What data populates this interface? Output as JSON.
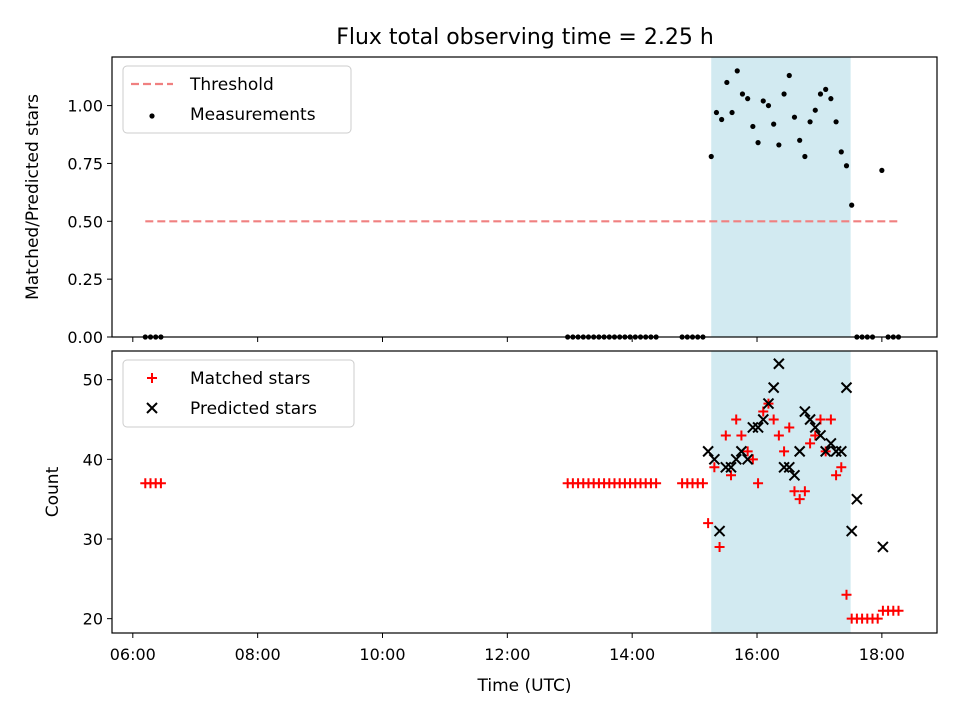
{
  "title": "Flux total observing time = 2.25 h",
  "colors": {
    "threshold": "#f08080",
    "shade": "#add8e6",
    "matched": "#ff0000",
    "predicted": "#000000",
    "measure": "#000000"
  },
  "chart_data": [
    {
      "type": "scatter",
      "title": "Flux total observing time = 2.25 h",
      "xlabel": "",
      "ylabel": "Matched/Predicted stars",
      "x_unit": "hours UTC",
      "xlim": [
        "05:40",
        "18:53"
      ],
      "ylim": [
        0,
        1.21
      ],
      "yticks": [
        "0.00",
        "0.25",
        "0.50",
        "0.75",
        "1.00"
      ],
      "shaded_interval": [
        "15:16",
        "17:30"
      ],
      "legend": [
        "Threshold",
        "Measurements"
      ],
      "legend_position": "upper left",
      "series": [
        {
          "name": "Threshold",
          "style": "dashed line",
          "x": [
            "06:12",
            "18:17"
          ],
          "y": [
            0.5,
            0.5
          ]
        },
        {
          "name": "Measurements",
          "style": "points",
          "x": [
            "06:12",
            "06:17",
            "06:22",
            "06:27",
            "12:58",
            "13:03",
            "13:08",
            "13:13",
            "13:18",
            "13:23",
            "13:28",
            "13:33",
            "13:38",
            "13:43",
            "13:48",
            "13:53",
            "13:58",
            "14:03",
            "14:08",
            "14:13",
            "14:18",
            "14:23",
            "14:48",
            "14:53",
            "14:58",
            "15:03",
            "15:08",
            "15:16",
            "15:21",
            "15:26",
            "15:31",
            "15:36",
            "15:41",
            "15:46",
            "15:51",
            "15:56",
            "16:01",
            "16:06",
            "16:11",
            "16:16",
            "16:21",
            "16:26",
            "16:31",
            "16:36",
            "16:41",
            "16:46",
            "16:51",
            "16:56",
            "17:01",
            "17:06",
            "17:11",
            "17:16",
            "17:21",
            "17:26",
            "17:31",
            "17:36",
            "17:41",
            "17:46",
            "17:51",
            "18:00",
            "18:06",
            "18:11",
            "18:16"
          ],
          "y": [
            0,
            0,
            0,
            0,
            0,
            0,
            0,
            0,
            0,
            0,
            0,
            0,
            0,
            0,
            0,
            0,
            0,
            0,
            0,
            0,
            0,
            0,
            0,
            0,
            0,
            0,
            0,
            0.78,
            0.97,
            0.94,
            1.1,
            0.97,
            1.15,
            1.05,
            1.03,
            0.91,
            0.84,
            1.02,
            1.0,
            0.92,
            0.83,
            1.05,
            1.13,
            0.95,
            0.85,
            0.78,
            0.93,
            0.98,
            1.05,
            1.07,
            1.03,
            0.93,
            0.8,
            0.74,
            0.57,
            0,
            0,
            0,
            0,
            0.72,
            0,
            0,
            0
          ]
        }
      ]
    },
    {
      "type": "scatter",
      "xlabel": "Time (UTC)",
      "ylabel": "Count",
      "x_unit": "hours UTC",
      "xlim": [
        "05:40",
        "18:53"
      ],
      "ylim": [
        18.2,
        53.6
      ],
      "xticks": [
        "06:00",
        "08:00",
        "10:00",
        "12:00",
        "14:00",
        "16:00",
        "18:00"
      ],
      "yticks": [
        "20",
        "30",
        "40",
        "50"
      ],
      "shaded_interval": [
        "15:16",
        "17:30"
      ],
      "legend": [
        "Matched stars",
        "Predicted stars"
      ],
      "legend_position": "upper left",
      "series": [
        {
          "name": "Matched stars",
          "marker": "+",
          "x": [
            "06:12",
            "06:17",
            "06:22",
            "06:27",
            "12:58",
            "13:03",
            "13:08",
            "13:13",
            "13:18",
            "13:23",
            "13:28",
            "13:33",
            "13:38",
            "13:43",
            "13:48",
            "13:53",
            "13:58",
            "14:03",
            "14:08",
            "14:13",
            "14:18",
            "14:23",
            "14:48",
            "14:53",
            "14:58",
            "15:03",
            "15:08",
            "15:13",
            "15:19",
            "15:24",
            "15:30",
            "15:35",
            "15:40",
            "15:45",
            "15:51",
            "15:56",
            "16:01",
            "16:06",
            "16:11",
            "16:16",
            "16:21",
            "16:26",
            "16:31",
            "16:36",
            "16:41",
            "16:46",
            "16:51",
            "16:56",
            "17:01",
            "17:06",
            "17:11",
            "17:16",
            "17:21",
            "17:26",
            "17:31",
            "17:36",
            "17:41",
            "17:46",
            "17:51",
            "17:56",
            "18:01",
            "18:06",
            "18:11",
            "18:16"
          ],
          "y": [
            37,
            37,
            37,
            37,
            37,
            37,
            37,
            37,
            37,
            37,
            37,
            37,
            37,
            37,
            37,
            37,
            37,
            37,
            37,
            37,
            37,
            37,
            37,
            37,
            37,
            37,
            37,
            32,
            39,
            29,
            43,
            38,
            45,
            43,
            41,
            40,
            37,
            46,
            47,
            45,
            43,
            41,
            44,
            36,
            35,
            36,
            42,
            43,
            45,
            41,
            45,
            38,
            39,
            23,
            20,
            20,
            20,
            20,
            20,
            20,
            21,
            21,
            21,
            21
          ]
        },
        {
          "name": "Predicted stars",
          "marker": "x",
          "x": [
            "15:13",
            "15:19",
            "15:24",
            "15:30",
            "15:35",
            "15:40",
            "15:45",
            "15:51",
            "15:56",
            "16:01",
            "16:06",
            "16:11",
            "16:16",
            "16:21",
            "16:26",
            "16:31",
            "16:36",
            "16:41",
            "16:46",
            "16:51",
            "16:56",
            "17:01",
            "17:06",
            "17:11",
            "17:16",
            "17:21",
            "17:26",
            "17:31",
            "17:36",
            "18:01"
          ],
          "y": [
            41,
            40,
            31,
            39,
            39,
            40,
            41,
            40,
            44,
            44,
            45,
            47,
            49,
            52,
            39,
            39,
            38,
            41,
            46,
            45,
            44,
            43,
            41,
            42,
            41,
            41,
            49,
            31,
            35,
            29
          ]
        }
      ]
    }
  ]
}
